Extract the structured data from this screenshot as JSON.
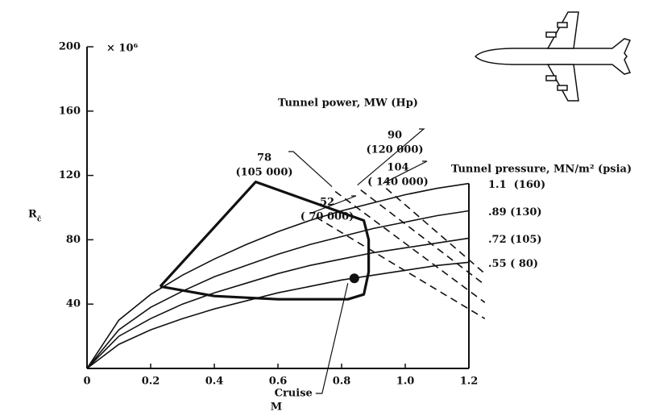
{
  "chart_data": {
    "type": "line",
    "x_label": "M",
    "y_label": "R",
    "y_label_sub": "c̄",
    "y_multiplier": "× 10⁶",
    "power_title": "Tunnel power, MW (Hp)",
    "pressure_title": "Tunnel pressure, MN/m² (psia)",
    "xlim": [
      0,
      1.2
    ],
    "ylim": [
      0,
      200
    ],
    "xticks": [
      0,
      0.2,
      0.4,
      0.6,
      0.8,
      {
        "value": 1,
        "label": "1.0"
      },
      1.2
    ],
    "yticks": [
      40,
      80,
      120,
      160,
      200
    ],
    "x": [
      0,
      0.1,
      0.2,
      0.3,
      0.4,
      0.5,
      0.6,
      0.7,
      0.8,
      0.9,
      1.0,
      1.1,
      1.2
    ],
    "color": "#111111",
    "series": [
      {
        "name": "1.1  (160)",
        "values": [
          0,
          30,
          46,
          58,
          68,
          77,
          85,
          92,
          98,
          103,
          108,
          112,
          115
        ]
      },
      {
        "name": ".89 (130)",
        "values": [
          0,
          24,
          38,
          48,
          57,
          64,
          71,
          77,
          82,
          87,
          91,
          95,
          98
        ]
      },
      {
        "name": ".72 (105)",
        "values": [
          0,
          20,
          31,
          40,
          47,
          53,
          59,
          64,
          68,
          72,
          75,
          78,
          81
        ]
      },
      {
        "name": ".55 ( 80)",
        "values": [
          0,
          15,
          24,
          31,
          37,
          42,
          47,
          51,
          55,
          58,
          61,
          64,
          66
        ]
      }
    ],
    "envelope": {
      "x": [
        0.23,
        0.53,
        0.87,
        0.885,
        0.885,
        0.87,
        0.82,
        0.6,
        0.4,
        0.23
      ],
      "values": [
        51,
        116,
        92,
        80,
        60,
        46,
        43,
        43,
        45,
        51
      ]
    },
    "power_lines": [
      {
        "label": "52",
        "hp": "( 70 000)",
        "x": [
          0.72,
          1.25
        ],
        "values": [
          94,
          31
        ]
      },
      {
        "label": "78",
        "hp": "(105 000)",
        "x": [
          0.78,
          1.25
        ],
        "values": [
          110,
          41
        ]
      },
      {
        "label": "90",
        "hp": "(120 000)",
        "x": [
          0.86,
          1.25
        ],
        "values": [
          111,
          52
        ]
      },
      {
        "label": "104",
        "hp": "( 140 000)",
        "x": [
          0.94,
          1.25
        ],
        "values": [
          112,
          59
        ]
      }
    ],
    "cruise": {
      "label": "Cruise",
      "x": 0.84,
      "value": 56
    }
  }
}
